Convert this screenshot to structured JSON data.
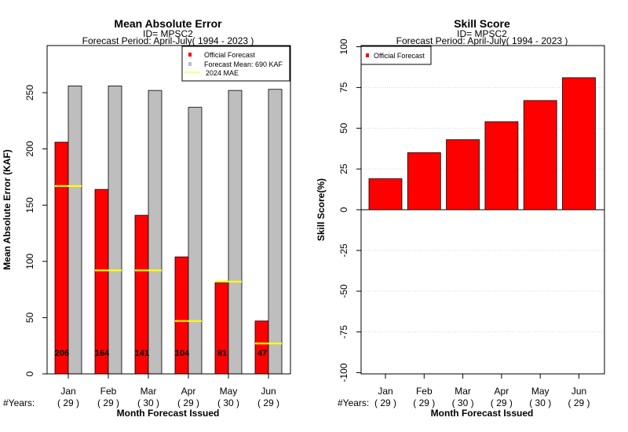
{
  "chart_data": [
    {
      "type": "bar",
      "title": "Mean Absolute Error",
      "subtitle_id": "ID= MPSC2",
      "subtitle_period": "Forecast Period: April-July( 1994 - 2023 )",
      "ylabel": "Mean Absolute Error (KAF)",
      "xlabel": "Month Forecast Issued",
      "years_prefix": "#Years:",
      "categories": [
        "Jan",
        "Feb",
        "Mar",
        "Apr",
        "May",
        "Jun"
      ],
      "years": [
        "( 29 )",
        "( 29 )",
        "( 30 )",
        "( 29 )",
        "( 30 )",
        "( 29 )"
      ],
      "ylim": [
        0,
        275
      ],
      "yticks": [
        0,
        50,
        100,
        150,
        200,
        250
      ],
      "series": [
        {
          "name": "Official Forecast",
          "color": "#ff0000",
          "values": [
            206,
            164,
            141,
            104,
            81,
            47
          ]
        },
        {
          "name": "Forecast Mean: 690 KAF",
          "color": "#bebebe",
          "values": [
            256,
            256,
            252,
            237,
            252,
            253
          ]
        },
        {
          "name": "2024  MAE",
          "color": "#ffff00",
          "values": [
            167,
            92,
            92,
            47,
            82,
            27
          ]
        }
      ],
      "bar_labels": [
        "206",
        "164",
        "141",
        "104",
        "81",
        "47"
      ],
      "legend_position": "top-right"
    },
    {
      "type": "bar",
      "title": "Skill Score",
      "subtitle_id": "ID= MPSC2",
      "subtitle_period": "Forecast Period: April-July( 1994 - 2023 )",
      "ylabel": "Skill Score(%)",
      "xlabel": "Month Forecast Issued",
      "years_prefix": "#Years:",
      "categories": [
        "Jan",
        "Feb",
        "Mar",
        "Apr",
        "May",
        "Jun"
      ],
      "years": [
        "( 29 )",
        "( 29 )",
        "( 30 )",
        "( 29 )",
        "( 30 )",
        "( 29 )"
      ],
      "ylim": [
        -100,
        100
      ],
      "yticks": [
        -100,
        -75,
        -50,
        -25,
        0,
        25,
        50,
        75,
        100
      ],
      "series": [
        {
          "name": "Official Forecast",
          "color": "#ff0000",
          "values": [
            19,
            35,
            43,
            54,
            67,
            81
          ]
        }
      ],
      "grid": true,
      "legend_position": "top-left"
    }
  ]
}
